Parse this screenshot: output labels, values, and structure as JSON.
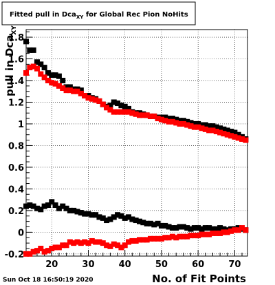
{
  "chart_data": {
    "type": "scatter",
    "title": "Fitted pull in Dca",
    "title_subscript": "XY",
    "title_suffix": " for Global Rec Pion NoHits",
    "xlabel": "No. of Fit Points",
    "ylabel": "pull in Dca",
    "ylabel_subscript": "XY",
    "date_stamp": "Sun Oct 18 16:50:19 2020",
    "xlim": [
      13,
      73.5
    ],
    "ylim": [
      -0.22,
      1.87
    ],
    "grid": true,
    "x_ticks": [
      20,
      30,
      40,
      50,
      60,
      70
    ],
    "x_tick_labels": [
      "20",
      "30",
      "40",
      "50",
      "60",
      "70"
    ],
    "y_ticks": [
      -0.2,
      0,
      0.2,
      0.4,
      0.6,
      0.8,
      1,
      1.2,
      1.4,
      1.6,
      1.8
    ],
    "y_tick_labels": [
      "-0.2",
      "0",
      "0.2",
      "0.4",
      "0.6",
      "0.8",
      "1",
      "1.2",
      "1.4",
      "1.6",
      "1.8"
    ],
    "series": [
      {
        "color": "#000000",
        "x": [
          13,
          14,
          15,
          16,
          17,
          18,
          19,
          20,
          21,
          22,
          23,
          24,
          25,
          26,
          27,
          28,
          29,
          30,
          31,
          32,
          33,
          34,
          35,
          36,
          37,
          38,
          39,
          40,
          41,
          42,
          43,
          44,
          45,
          46,
          47,
          48,
          49,
          50,
          51,
          52,
          53,
          54,
          55,
          56,
          57,
          58,
          59,
          60,
          61,
          62,
          63,
          64,
          65,
          66,
          67,
          68,
          69,
          70,
          71,
          72,
          73
        ],
        "y": [
          1.76,
          1.68,
          1.68,
          1.57,
          1.55,
          1.52,
          1.47,
          1.45,
          1.45,
          1.44,
          1.4,
          1.34,
          1.34,
          1.32,
          1.32,
          1.31,
          1.26,
          1.26,
          1.24,
          1.23,
          1.21,
          1.18,
          1.16,
          1.17,
          1.2,
          1.19,
          1.17,
          1.16,
          1.14,
          1.11,
          1.1,
          1.1,
          1.09,
          1.08,
          1.07,
          1.07,
          1.06,
          1.06,
          1.06,
          1.05,
          1.05,
          1.04,
          1.03,
          1.03,
          1.02,
          1.01,
          1.0,
          1.0,
          0.99,
          0.99,
          0.98,
          0.98,
          0.97,
          0.96,
          0.95,
          0.94,
          0.93,
          0.92,
          0.9,
          0.88,
          0.86
        ]
      },
      {
        "color": "#ff0000",
        "x": [
          13,
          14,
          15,
          16,
          17,
          18,
          19,
          20,
          21,
          22,
          23,
          24,
          25,
          26,
          27,
          28,
          29,
          30,
          31,
          32,
          33,
          34,
          35,
          36,
          37,
          38,
          39,
          40,
          41,
          42,
          43,
          44,
          45,
          46,
          47,
          48,
          49,
          50,
          51,
          52,
          53,
          54,
          55,
          56,
          57,
          58,
          59,
          60,
          61,
          62,
          63,
          64,
          65,
          66,
          67,
          68,
          69,
          70,
          71,
          72,
          73
        ],
        "y": [
          1.47,
          1.52,
          1.53,
          1.51,
          1.46,
          1.43,
          1.4,
          1.38,
          1.37,
          1.35,
          1.33,
          1.31,
          1.31,
          1.3,
          1.3,
          1.28,
          1.26,
          1.24,
          1.23,
          1.22,
          1.21,
          1.18,
          1.15,
          1.13,
          1.11,
          1.11,
          1.11,
          1.11,
          1.11,
          1.1,
          1.09,
          1.08,
          1.08,
          1.08,
          1.07,
          1.07,
          1.05,
          1.04,
          1.03,
          1.02,
          1.02,
          1.01,
          1.0,
          1.0,
          0.99,
          0.98,
          0.97,
          0.97,
          0.96,
          0.95,
          0.94,
          0.94,
          0.93,
          0.92,
          0.91,
          0.9,
          0.89,
          0.88,
          0.87,
          0.86,
          0.85
        ]
      },
      {
        "color": "#000000",
        "x": [
          13,
          14,
          15,
          16,
          17,
          18,
          19,
          20,
          21,
          22,
          23,
          24,
          25,
          26,
          27,
          28,
          29,
          30,
          31,
          32,
          33,
          34,
          35,
          36,
          37,
          38,
          39,
          40,
          41,
          42,
          43,
          44,
          45,
          46,
          47,
          48,
          49,
          50,
          51,
          52,
          53,
          54,
          55,
          56,
          57,
          58,
          59,
          60,
          61,
          62,
          63,
          64,
          65,
          66,
          67,
          68,
          69,
          70,
          71,
          72,
          73
        ],
        "y": [
          0.24,
          0.25,
          0.24,
          0.22,
          0.21,
          0.24,
          0.25,
          0.28,
          0.25,
          0.22,
          0.24,
          0.22,
          0.2,
          0.2,
          0.19,
          0.18,
          0.17,
          0.17,
          0.16,
          0.16,
          0.14,
          0.13,
          0.11,
          0.12,
          0.14,
          0.16,
          0.15,
          0.13,
          0.14,
          0.12,
          0.11,
          0.1,
          0.09,
          0.08,
          0.08,
          0.07,
          0.08,
          0.06,
          0.06,
          0.05,
          0.04,
          0.04,
          0.05,
          0.05,
          0.04,
          0.03,
          0.04,
          0.04,
          0.03,
          0.04,
          0.04,
          0.03,
          0.03,
          0.04,
          0.03,
          0.02,
          0.03,
          0.03,
          0.04,
          0.03,
          0.02
        ]
      },
      {
        "color": "#ff0000",
        "x": [
          13,
          14,
          15,
          16,
          17,
          18,
          19,
          20,
          21,
          22,
          23,
          24,
          25,
          26,
          27,
          28,
          29,
          30,
          31,
          32,
          33,
          34,
          35,
          36,
          37,
          38,
          39,
          40,
          41,
          42,
          43,
          44,
          45,
          46,
          47,
          48,
          49,
          50,
          51,
          52,
          53,
          54,
          55,
          56,
          57,
          58,
          59,
          60,
          61,
          62,
          63,
          64,
          65,
          66,
          67,
          68,
          69,
          70,
          71,
          72,
          73
        ],
        "y": [
          -0.2,
          -0.2,
          -0.18,
          -0.17,
          -0.15,
          -0.18,
          -0.17,
          -0.15,
          -0.14,
          -0.14,
          -0.12,
          -0.12,
          -0.09,
          -0.1,
          -0.09,
          -0.1,
          -0.09,
          -0.1,
          -0.08,
          -0.09,
          -0.09,
          -0.1,
          -0.12,
          -0.13,
          -0.11,
          -0.12,
          -0.14,
          -0.12,
          -0.09,
          -0.08,
          -0.08,
          -0.07,
          -0.07,
          -0.07,
          -0.06,
          -0.06,
          -0.06,
          -0.06,
          -0.05,
          -0.05,
          -0.04,
          -0.05,
          -0.04,
          -0.04,
          -0.04,
          -0.03,
          -0.03,
          -0.03,
          -0.02,
          -0.02,
          -0.02,
          -0.01,
          -0.01,
          -0.01,
          0.0,
          0.0,
          0.01,
          0.02,
          0.02,
          0.04,
          0.02
        ]
      }
    ]
  }
}
